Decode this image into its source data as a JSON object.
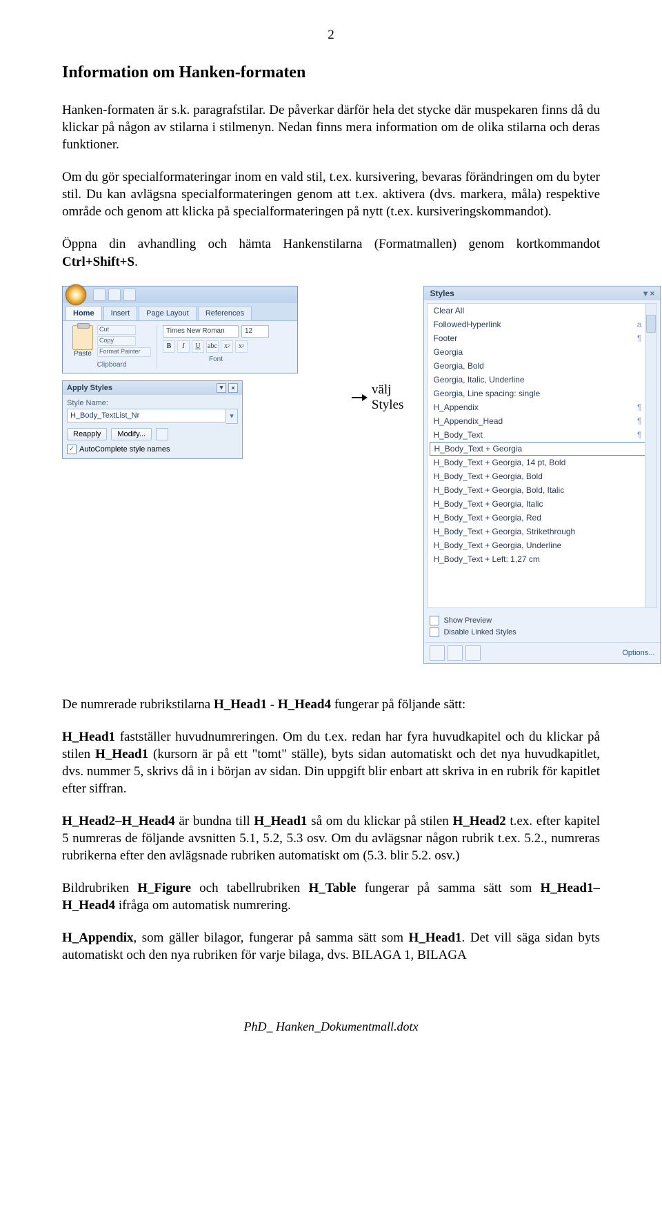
{
  "page_number": "2",
  "heading": "Information om Hanken-formaten",
  "p1_a": "Hanken-formaten är s.k. paragrafstilar. De påverkar därför hela det stycke där muspekaren finns då du klickar på någon av stilarna i stilmenyn. Nedan finns mera information om de olika stilarna och deras funktioner.",
  "p2_a": "Om du gör specialformateringar inom en vald stil, t.ex. kursivering, bevaras förändringen om du byter stil. Du kan avlägsna specialformateringen genom att t.ex. aktivera (dvs. markera, måla) respektive område och genom att klicka på specialformateringen på nytt (t.ex. kursiveringskommandot).",
  "p3_a": "Öppna din avhandling och hämta Hankenstilarna (Formatmallen) genom kortkommandot ",
  "p3_b": "Ctrl+Shift+S",
  "p3_c": ".",
  "valj_text": "välj Styles",
  "p4_a": "De numrerade rubrikstilarna ",
  "p4_b": "H_Head1 - H_Head4",
  "p4_c": " fungerar på följande sätt:",
  "p5_a": "H_Head1",
  "p5_b": " fastställer huvudnumreringen. Om du t.ex. redan har fyra huvudkapitel och du klickar på stilen ",
  "p5_c": "H_Head1",
  "p5_d": " (kursorn är på ett \"tomt\" ställe), byts sidan automatiskt och det nya huvudkapitlet, dvs. nummer 5, skrivs då in i början av sidan. Din uppgift blir enbart att skriva in en rubrik för kapitlet efter siffran.",
  "p6_a": "H_Head2–H_Head4",
  "p6_b": " är bundna till ",
  "p6_c": "H_Head1",
  "p6_d": " så om du klickar på stilen ",
  "p6_e": "H_Head2",
  "p6_f": " t.ex. efter kapitel 5 numreras de följande avsnitten 5.1, 5.2, 5.3 osv. Om du avlägsnar någon rubrik t.ex. 5.2., numreras rubrikerna efter den avlägsnade rubriken automatiskt om (5.3. blir 5.2. osv.)",
  "p7_a": "Bildrubriken ",
  "p7_b": "H_Figure",
  "p7_c": " och tabellrubriken ",
  "p7_d": "H_Table",
  "p7_e": " fungerar på samma sätt som ",
  "p7_f": "H_Head1–H_Head4",
  "p7_g": " ifråga om automatisk numrering.",
  "p8_a": "H_Appendix",
  "p8_b": ", som gäller bilagor, fungerar på samma sätt som ",
  "p8_c": "H_Head1",
  "p8_d": ". Det vill säga sidan byts automatiskt och den nya rubriken för varje bilaga, dvs. BILAGA 1, BILAGA",
  "footer": "PhD_ Hanken_Dokumentmall.dotx",
  "ribbon": {
    "tabs": [
      "Home",
      "Insert",
      "Page Layout",
      "References"
    ],
    "active_tab": "Home",
    "clipboard": {
      "cut": "Cut",
      "copy": "Copy",
      "fp": "Format Painter",
      "paste": "Paste",
      "label": "Clipboard"
    },
    "font": {
      "family": "Times New Roman",
      "size": "12",
      "label": "Font"
    }
  },
  "apply_styles": {
    "title": "Apply Styles",
    "label": "Style Name:",
    "value": "H_Body_TextList_Nr",
    "reapply": "Reapply",
    "modify": "Modify...",
    "autocomplete": "AutoComplete style names"
  },
  "styles_pane": {
    "title": "Styles",
    "items": [
      {
        "t": "Clear All",
        "s": ""
      },
      {
        "t": "FollowedHyperlink",
        "s": "a"
      },
      {
        "t": "Footer",
        "s": "¶"
      },
      {
        "t": "Georgia",
        "s": ""
      },
      {
        "t": "Georgia, Bold",
        "s": ""
      },
      {
        "t": "Georgia, Italic, Underline",
        "s": ""
      },
      {
        "t": "Georgia, Line spacing:  single",
        "s": ""
      },
      {
        "t": "H_Appendix",
        "s": "¶"
      },
      {
        "t": "H_Appendix_Head",
        "s": "¶"
      },
      {
        "t": "H_Body_Text",
        "s": "¶"
      },
      {
        "t": "H_Body_Text + Georgia",
        "s": "",
        "selected": true
      },
      {
        "t": "H_Body_Text + Georgia, 14 pt, Bold",
        "s": ""
      },
      {
        "t": "H_Body_Text + Georgia, Bold",
        "s": ""
      },
      {
        "t": "H_Body_Text + Georgia, Bold, Italic",
        "s": ""
      },
      {
        "t": "H_Body_Text + Georgia, Italic",
        "s": ""
      },
      {
        "t": "H_Body_Text + Georgia, Red",
        "s": ""
      },
      {
        "t": "H_Body_Text + Georgia, Strikethrough",
        "s": ""
      },
      {
        "t": "H_Body_Text + Georgia, Underline",
        "s": ""
      },
      {
        "t": "H_Body_Text + Left:  1,27 cm",
        "s": ""
      }
    ],
    "show_preview": "Show Preview",
    "disable_linked": "Disable Linked Styles",
    "options": "Options..."
  }
}
